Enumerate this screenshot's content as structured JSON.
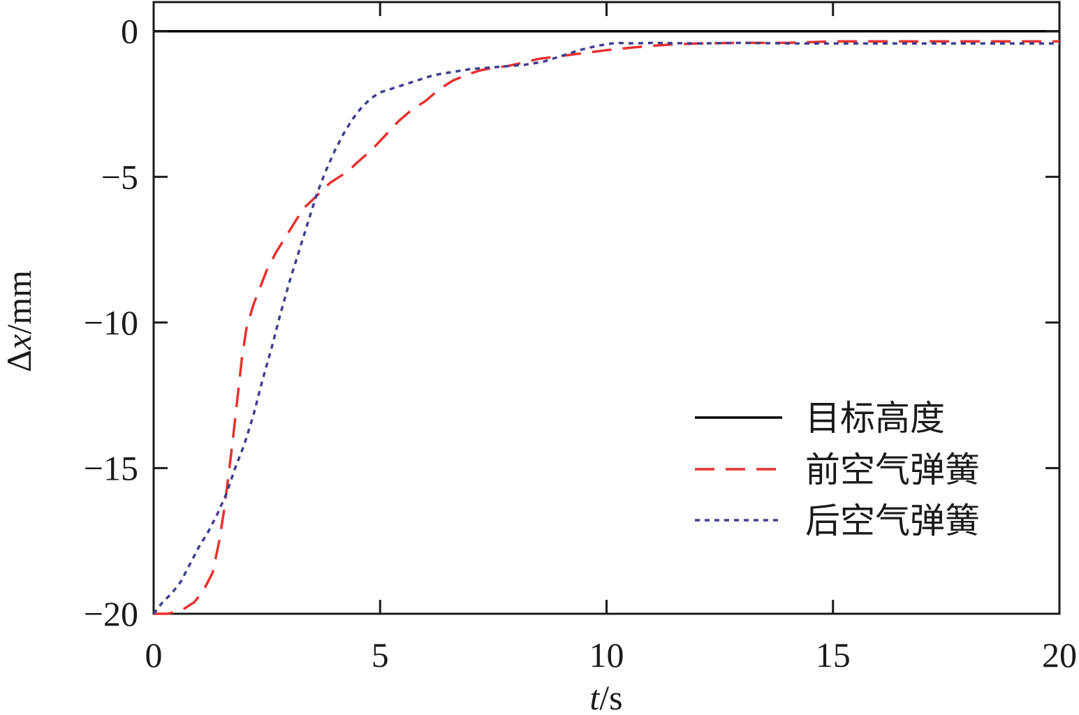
{
  "chart_data": {
    "type": "line",
    "title": "",
    "xlabel": "t/s",
    "xlabel_var": "t",
    "xlabel_unit": "/s",
    "ylabel": "Δx/mm",
    "ylabel_var": "x",
    "ylabel_prefix": "Δ",
    "ylabel_unit": "/mm",
    "xlim": [
      0,
      20
    ],
    "ylim": [
      -20,
      1
    ],
    "xticks": [
      0,
      5,
      10,
      15,
      20
    ],
    "xtick_labels": [
      "0",
      "5",
      "10",
      "15",
      "20"
    ],
    "yticks": [
      0,
      -5,
      -10,
      -15,
      -20
    ],
    "ytick_labels": [
      "0",
      "−5",
      "−10",
      "−15",
      "−20"
    ],
    "grid": false,
    "legend_position": "bottom-right",
    "series": [
      {
        "name": "目标高度",
        "color": "#000000",
        "style": "solid",
        "x": [
          0,
          20
        ],
        "y": [
          0,
          0
        ]
      },
      {
        "name": "前空气弹簧",
        "color": "#e8302f",
        "style": "dashed",
        "x": [
          0,
          0.3,
          0.6,
          0.9,
          1.1,
          1.3,
          1.45,
          1.55,
          1.65,
          1.75,
          1.85,
          1.95,
          2.05,
          2.2,
          2.35,
          2.5,
          2.7,
          2.9,
          3.1,
          3.3,
          3.5,
          3.7,
          3.9,
          4.1,
          4.3,
          4.5,
          4.8,
          5.1,
          5.4,
          5.7,
          6.0,
          6.3,
          6.6,
          6.9,
          7.2,
          7.5,
          7.8,
          8.1,
          8.5,
          9.0,
          9.5,
          10.0,
          10.5,
          11.0,
          11.5,
          12.0,
          13.0,
          14.0,
          15.0,
          16.0,
          17.0,
          18.0,
          19.0,
          20.0
        ],
        "y": [
          -20,
          -20,
          -19.9,
          -19.6,
          -19.2,
          -18.6,
          -17.5,
          -16.5,
          -15.3,
          -14.0,
          -12.6,
          -11.2,
          -10.2,
          -9.4,
          -8.8,
          -8.2,
          -7.6,
          -7.1,
          -6.6,
          -6.1,
          -5.8,
          -5.5,
          -5.2,
          -5.0,
          -4.8,
          -4.5,
          -4.1,
          -3.6,
          -3.1,
          -2.7,
          -2.4,
          -2.0,
          -1.7,
          -1.5,
          -1.35,
          -1.25,
          -1.2,
          -1.1,
          -0.95,
          -0.85,
          -0.75,
          -0.65,
          -0.57,
          -0.5,
          -0.45,
          -0.42,
          -0.4,
          -0.4,
          -0.35,
          -0.35,
          -0.35,
          -0.35,
          -0.35,
          -0.35
        ]
      },
      {
        "name": "后空气弹簧",
        "color": "#3f3f8f",
        "style": "dotted",
        "x": [
          0,
          0.2,
          0.4,
          0.6,
          0.8,
          1.0,
          1.2,
          1.4,
          1.6,
          1.8,
          2.0,
          2.2,
          2.4,
          2.6,
          2.8,
          3.0,
          3.2,
          3.4,
          3.6,
          3.8,
          4.0,
          4.2,
          4.4,
          4.6,
          4.8,
          5.0,
          5.3,
          5.6,
          5.9,
          6.2,
          6.6,
          7.0,
          7.4,
          7.8,
          8.2,
          8.6,
          9.0,
          9.4,
          9.8,
          10.2,
          10.6,
          11.0,
          12.0,
          13.0,
          14.0,
          15.0,
          16.0,
          17.0,
          18.0,
          19.0,
          20.0
        ],
        "y": [
          -20,
          -19.6,
          -19.3,
          -18.9,
          -18.3,
          -17.7,
          -17.2,
          -16.6,
          -15.9,
          -15.0,
          -14.2,
          -13.2,
          -12.0,
          -10.9,
          -9.7,
          -8.6,
          -7.6,
          -6.6,
          -5.6,
          -4.8,
          -4.1,
          -3.5,
          -3.0,
          -2.6,
          -2.3,
          -2.1,
          -1.95,
          -1.8,
          -1.65,
          -1.5,
          -1.4,
          -1.3,
          -1.25,
          -1.2,
          -1.15,
          -1.05,
          -0.85,
          -0.65,
          -0.5,
          -0.4,
          -0.42,
          -0.4,
          -0.42,
          -0.4,
          -0.42,
          -0.42,
          -0.42,
          -0.42,
          -0.42,
          -0.42,
          -0.42
        ]
      }
    ]
  }
}
